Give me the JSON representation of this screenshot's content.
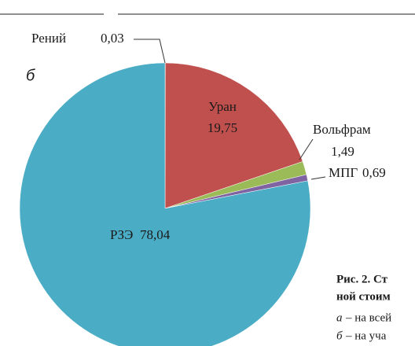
{
  "chart_data": {
    "type": "pie",
    "categories": [
      "Рений",
      "Уран",
      "Вольфрам",
      "МПГ",
      "РЗЭ"
    ],
    "values": [
      0.03,
      19.75,
      1.49,
      0.69,
      78.04
    ],
    "value_labels": [
      "0,03",
      "19,75",
      "1,49",
      "0,69",
      "78,04"
    ],
    "colors": [
      "#f79646",
      "#c0504d",
      "#9bbb59",
      "#8064a2",
      "#4bacc6"
    ]
  },
  "panel_label": "б",
  "caption": {
    "title_lines": [
      "Рис. 2. Ст",
      "ной стоим"
    ],
    "items": [
      {
        "letter": "а",
        "text": "– на всей"
      },
      {
        "letter": "б",
        "text": "– на уча"
      }
    ]
  }
}
